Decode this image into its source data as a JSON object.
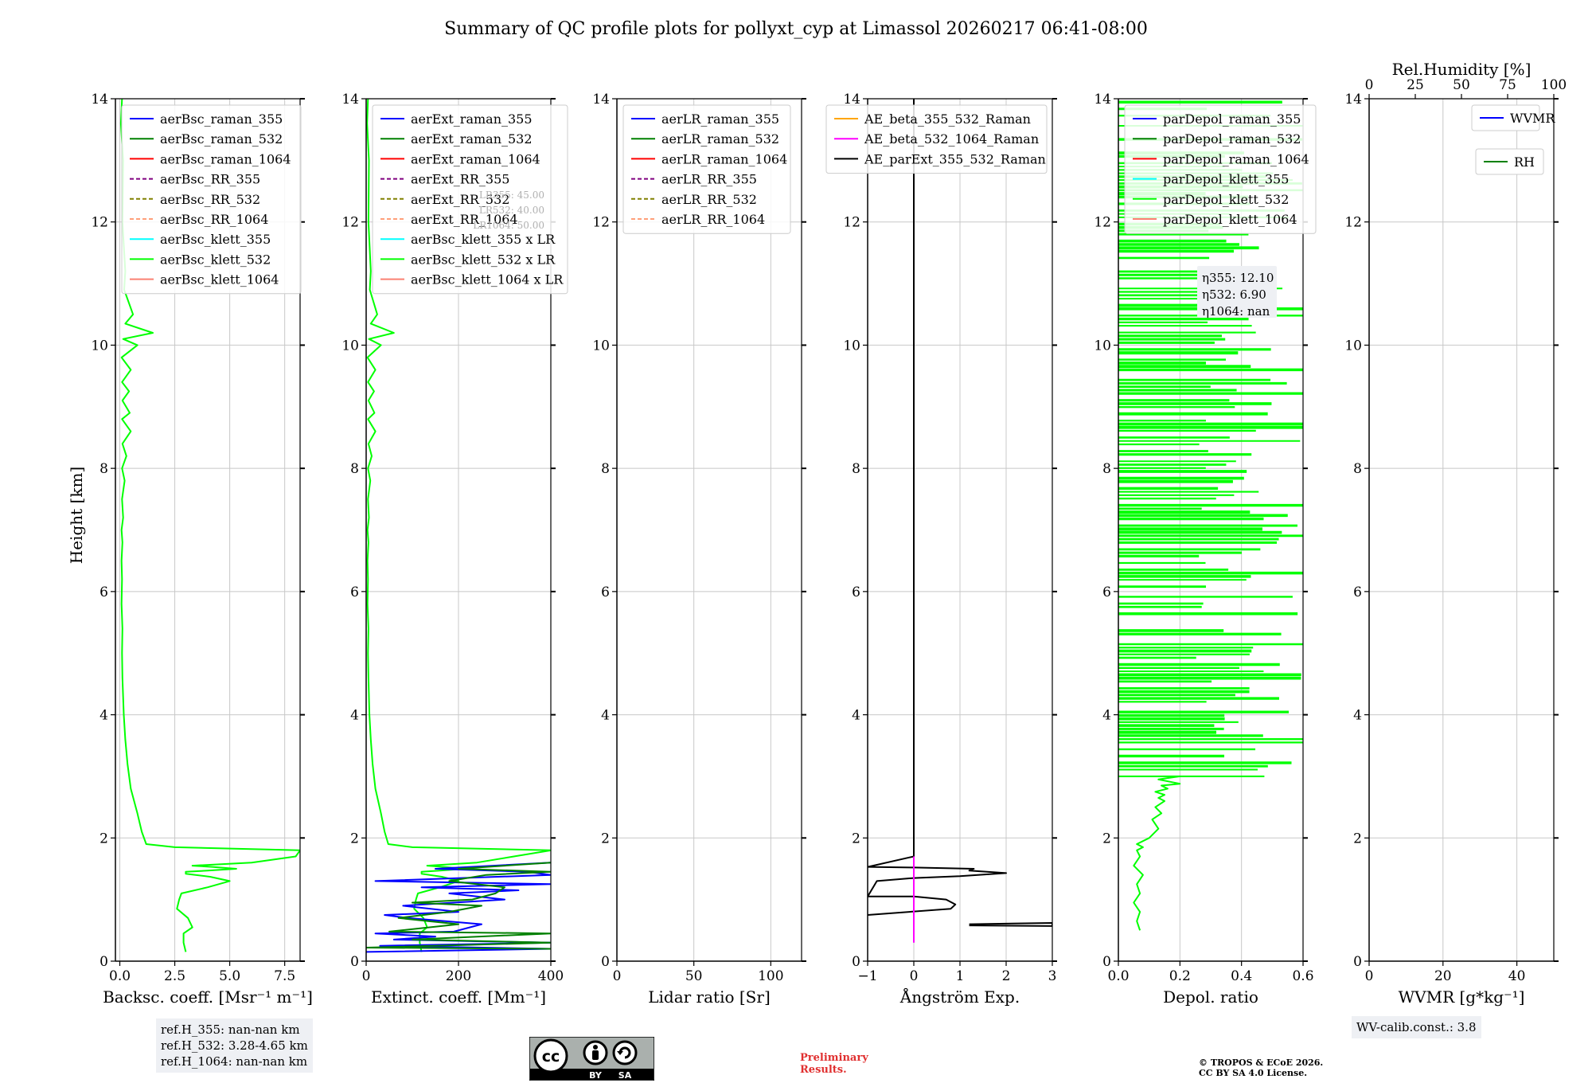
{
  "title": "Summary of QC profile plots for pollyxt_cyp at Limassol 20260217 06:41-08:00",
  "y_axis_label": "Height [km]",
  "chart_data": [
    {
      "type": "line",
      "panel": "backscatter",
      "xlabel": "Backsc. coeff. [Msr⁻¹ m⁻¹]",
      "xlim": [
        -0.2,
        8.2
      ],
      "xticks": [
        0.0,
        2.5,
        5.0,
        7.5
      ],
      "xtick_labels": [
        "0.0",
        "2.5",
        "5.0",
        "7.5"
      ],
      "ylim": [
        0,
        14
      ],
      "legend": [
        {
          "label": "aerBsc_raman_355",
          "color": "#0000ff",
          "dash": false
        },
        {
          "label": "aerBsc_raman_532",
          "color": "#008000",
          "dash": false
        },
        {
          "label": "aerBsc_raman_1064",
          "color": "#ff0000",
          "dash": false
        },
        {
          "label": "aerBsc_RR_355",
          "color": "#800080",
          "dash": true
        },
        {
          "label": "aerBsc_RR_532",
          "color": "#808000",
          "dash": true
        },
        {
          "label": "aerBsc_RR_1064",
          "color": "#ffa07a",
          "dash": true
        },
        {
          "label": "aerBsc_klett_355",
          "color": "#00ffff",
          "dash": false
        },
        {
          "label": "aerBsc_klett_532",
          "color": "#00ff00",
          "dash": false
        },
        {
          "label": "aerBsc_klett_1064",
          "color": "#fa8072",
          "dash": false
        }
      ],
      "series": [
        {
          "name": "aerBsc_klett_532",
          "color": "#00ff00",
          "x": [
            3.0,
            2.9,
            2.9,
            3.3,
            3.1,
            2.6,
            2.7,
            2.8,
            4.0,
            5.0,
            4.1,
            3.0,
            3.0,
            4.0,
            5.3,
            4.2,
            3.3,
            6.0,
            8.0,
            8.2,
            2.5,
            1.2,
            1.0,
            0.8,
            0.5,
            0.35,
            0.25,
            0.18,
            0.12,
            0.1,
            0.12,
            0.08,
            0.1,
            0.08,
            0.12,
            0.08,
            0.15,
            0.1,
            0.22,
            0.1,
            0.3,
            0.12,
            0.5,
            0.1,
            0.45,
            0.12,
            0.42,
            0.1,
            0.5,
            0.08,
            0.8,
            0.15,
            1.5,
            0.25,
            0.6,
            0.2,
            0.25,
            0.12,
            0.15,
            0.05,
            0.1
          ],
          "y": [
            0.15,
            0.3,
            0.45,
            0.55,
            0.7,
            0.85,
            1.0,
            1.1,
            1.2,
            1.3,
            1.37,
            1.42,
            1.45,
            1.47,
            1.5,
            1.53,
            1.55,
            1.6,
            1.7,
            1.8,
            1.85,
            1.9,
            2.1,
            2.4,
            2.8,
            3.2,
            3.6,
            4.0,
            4.6,
            5.0,
            5.4,
            5.8,
            6.2,
            6.5,
            6.8,
            7.0,
            7.2,
            7.5,
            7.8,
            8.0,
            8.2,
            8.4,
            8.6,
            8.8,
            8.9,
            9.1,
            9.25,
            9.4,
            9.6,
            9.8,
            10.0,
            10.1,
            10.2,
            10.35,
            10.5,
            10.9,
            11.2,
            12.0,
            13.0,
            13.6,
            14.0
          ]
        }
      ]
    },
    {
      "type": "line",
      "panel": "extinction",
      "xlabel": "Extinct. coeff. [Mm⁻¹]",
      "xlim": [
        0,
        400
      ],
      "xticks": [
        0,
        200,
        400
      ],
      "xtick_labels": [
        "0",
        "200",
        "400"
      ],
      "ylim": [
        0,
        14
      ],
      "lidar_ratio_labels": [
        "LR355: 45.00",
        "LR532: 40.00",
        "LR1064: 50.00"
      ],
      "legend": [
        {
          "label": "aerExt_raman_355",
          "color": "#0000ff",
          "dash": false
        },
        {
          "label": "aerExt_raman_532",
          "color": "#008000",
          "dash": false
        },
        {
          "label": "aerExt_raman_1064",
          "color": "#ff0000",
          "dash": false
        },
        {
          "label": "aerExt_RR_355",
          "color": "#800080",
          "dash": true
        },
        {
          "label": "aerExt_RR_532",
          "color": "#808000",
          "dash": true
        },
        {
          "label": "aerExt_RR_1064",
          "color": "#ffa07a",
          "dash": true
        },
        {
          "label": "aerBsc_klett_355 x LR",
          "color": "#00ffff",
          "dash": false
        },
        {
          "label": "aerBsc_klett_532 x LR",
          "color": "#00ff00",
          "dash": false
        },
        {
          "label": "aerBsc_klett_1064 x LR",
          "color": "#fa8072",
          "dash": false
        }
      ],
      "series": [
        {
          "name": "aerBsc_klett_532 x LR",
          "color": "#00ff00",
          "x": [
            120,
            116,
            116,
            132,
            124,
            104,
            108,
            112,
            160,
            200,
            164,
            120,
            120,
            160,
            212,
            168,
            132,
            240,
            320,
            400,
            100,
            48,
            40,
            32,
            20,
            14,
            10,
            7,
            5,
            4,
            5,
            3,
            4,
            3,
            5,
            3,
            6,
            4,
            9,
            4,
            12,
            5,
            20,
            4,
            18,
            5,
            17,
            4,
            20,
            3,
            32,
            6,
            60,
            10,
            24,
            8,
            10,
            5,
            6,
            2,
            4
          ],
          "y": [
            0.15,
            0.3,
            0.45,
            0.55,
            0.7,
            0.85,
            1.0,
            1.1,
            1.2,
            1.3,
            1.37,
            1.42,
            1.45,
            1.47,
            1.5,
            1.53,
            1.55,
            1.6,
            1.7,
            1.8,
            1.85,
            1.9,
            2.1,
            2.4,
            2.8,
            3.2,
            3.6,
            4.0,
            4.6,
            5.0,
            5.4,
            5.8,
            6.2,
            6.5,
            6.8,
            7.0,
            7.2,
            7.5,
            7.8,
            8.0,
            8.2,
            8.4,
            8.6,
            8.8,
            8.9,
            9.1,
            9.25,
            9.4,
            9.6,
            9.8,
            10.0,
            10.1,
            10.2,
            10.35,
            10.5,
            10.9,
            11.2,
            12.0,
            13.0,
            13.6,
            14.0
          ]
        },
        {
          "name": "aerExt_raman_355",
          "color": "#0000ff",
          "x": [
            0,
            400,
            30,
            400,
            60,
            150,
            20,
            190,
            250,
            90,
            40,
            200,
            80,
            300,
            180,
            330,
            120,
            400,
            20,
            400,
            350,
            150,
            400
          ],
          "y": [
            0.15,
            0.2,
            0.25,
            0.3,
            0.35,
            0.4,
            0.45,
            0.48,
            0.6,
            0.7,
            0.75,
            0.8,
            0.9,
            1.0,
            1.1,
            1.15,
            1.2,
            1.25,
            1.3,
            1.4,
            1.45,
            1.5,
            1.6
          ]
        },
        {
          "name": "aerExt_raman_532",
          "color": "#008000",
          "x": [
            400,
            0,
            400,
            100,
            400,
            50,
            200,
            70,
            180,
            250,
            100,
            230,
            280,
            300,
            180,
            260,
            400,
            200,
            400
          ],
          "y": [
            0.2,
            0.22,
            0.3,
            0.35,
            0.45,
            0.48,
            0.6,
            0.7,
            0.8,
            0.9,
            0.95,
            1.0,
            1.1,
            1.2,
            1.3,
            1.4,
            1.45,
            1.5,
            1.6
          ]
        }
      ]
    },
    {
      "type": "line",
      "panel": "lidar_ratio",
      "xlabel": "Lidar ratio [Sr]",
      "xlim": [
        0,
        120
      ],
      "xticks": [
        0,
        50,
        100
      ],
      "xtick_labels": [
        "0",
        "50",
        "100"
      ],
      "ylim": [
        0,
        14
      ],
      "legend": [
        {
          "label": "aerLR_raman_355",
          "color": "#0000ff",
          "dash": false
        },
        {
          "label": "aerLR_raman_532",
          "color": "#008000",
          "dash": false
        },
        {
          "label": "aerLR_raman_1064",
          "color": "#ff0000",
          "dash": false
        },
        {
          "label": "aerLR_RR_355",
          "color": "#800080",
          "dash": true
        },
        {
          "label": "aerLR_RR_532",
          "color": "#808000",
          "dash": true
        },
        {
          "label": "aerLR_RR_1064",
          "color": "#ffa07a",
          "dash": true
        }
      ],
      "series": []
    },
    {
      "type": "line",
      "panel": "angstrom",
      "xlabel": "Ångström Exp.",
      "xlim": [
        -1,
        3
      ],
      "xticks": [
        -1,
        0,
        1,
        2,
        3
      ],
      "xtick_labels": [
        "−1",
        "0",
        "1",
        "2",
        "3"
      ],
      "ylim": [
        0,
        14
      ],
      "legend": [
        {
          "label": "AE_beta_355_532_Raman",
          "color": "#ffa500",
          "dash": false
        },
        {
          "label": "AE_beta_532_1064_Raman",
          "color": "#ff00ff",
          "dash": false
        },
        {
          "label": "AE_parExt_355_532_Raman",
          "color": "#000000",
          "dash": false
        }
      ],
      "series": [
        {
          "name": "AE_parExt_355_532_Raman",
          "color": "#000000",
          "x": [
            -1.0,
            0.8,
            0.9,
            0.7,
            0.0,
            -1.0,
            -0.8,
            0.0,
            1.0,
            2.0,
            1.2,
            1.3,
            0.0,
            -1.0,
            0.0,
            0.0,
            0.0
          ],
          "y": [
            0.75,
            0.85,
            0.92,
            1.0,
            1.05,
            1.05,
            1.3,
            1.35,
            1.38,
            1.43,
            1.47,
            1.5,
            1.52,
            1.53,
            1.7,
            1.7,
            14.0
          ]
        },
        {
          "name": "AE_parExt_355_532_Raman (segment 2)",
          "color": "#000000",
          "x": [
            1.2,
            3.0,
            3.0,
            1.2
          ],
          "y": [
            0.6,
            0.62,
            0.57,
            0.58
          ]
        },
        {
          "name": "AE_beta_532_1064_Raman",
          "color": "#ff00ff",
          "x": [
            0.0,
            0.0
          ],
          "y": [
            0.3,
            1.7
          ]
        }
      ]
    },
    {
      "type": "line",
      "panel": "depolarization",
      "xlabel": "Depol. ratio",
      "xlim": [
        0,
        0.6
      ],
      "xticks": [
        0.0,
        0.2,
        0.4,
        0.6
      ],
      "xtick_labels": [
        "0.0",
        "0.2",
        "0.4",
        "0.6"
      ],
      "ylim": [
        0,
        14
      ],
      "eta_labels": [
        "η355: 12.10",
        "η532: 6.90",
        "η1064: nan"
      ],
      "legend": [
        {
          "label": "parDepol_raman_355",
          "color": "#0000ff",
          "dash": false
        },
        {
          "label": "parDepol_raman_532",
          "color": "#008000",
          "dash": false
        },
        {
          "label": "parDepol_raman_1064",
          "color": "#ff0000",
          "dash": false
        },
        {
          "label": "parDepol_klett_355",
          "color": "#00ffff",
          "dash": false
        },
        {
          "label": "parDepol_klett_532",
          "color": "#00ff00",
          "dash": false
        },
        {
          "label": "parDepol_klett_1064",
          "color": "#fa8072",
          "dash": false
        }
      ],
      "series": [
        {
          "name": "parDepol_klett_532 (near-field)",
          "color": "#00ff00",
          "x": [
            0.07,
            0.06,
            0.07,
            0.05,
            0.07,
            0.06,
            0.08,
            0.05,
            0.07,
            0.06,
            0.08,
            0.06,
            0.1,
            0.13,
            0.11,
            0.14,
            0.12,
            0.15,
            0.13,
            0.15,
            0.12,
            0.16,
            0.14,
            0.2,
            0.13,
            0.2
          ],
          "y": [
            0.5,
            0.65,
            0.8,
            0.95,
            1.1,
            1.25,
            1.4,
            1.55,
            1.7,
            1.8,
            1.85,
            1.9,
            2.0,
            2.15,
            2.3,
            2.4,
            2.5,
            2.6,
            2.65,
            2.7,
            2.75,
            2.8,
            2.85,
            2.88,
            2.95,
            3.0
          ]
        }
      ]
    },
    {
      "type": "line",
      "panel": "wvmr_rh",
      "xlabel": "WVMR [g*kg⁻¹]",
      "xlim": [
        0,
        50
      ],
      "xticks": [
        0,
        20,
        40
      ],
      "xtick_labels": [
        "0",
        "20",
        "40"
      ],
      "top_xlabel": "Rel.Humidity [%]",
      "top_xlim": [
        0,
        100
      ],
      "top_xticks": [
        0,
        25,
        50,
        75,
        100
      ],
      "top_xtick_labels": [
        "0",
        "25",
        "50",
        "75",
        "100"
      ],
      "ylim": [
        0,
        14
      ],
      "legend": [
        {
          "label": "WVMR",
          "color": "#0000ff",
          "dash": false
        },
        {
          "label": "RH",
          "color": "#008000",
          "dash": false
        }
      ],
      "series": []
    }
  ],
  "ref_heights": [
    "ref.H_355: nan-nan km",
    "ref.H_532: 3.28-4.65 km",
    "ref.H_1064: nan-nan km"
  ],
  "wv_calib": "WV-calib.const.: 3.8",
  "license_badge": {
    "cc": "cc",
    "by": "BY",
    "sa": "SA"
  },
  "preliminary": [
    "Preliminary",
    "Results."
  ],
  "copyright": [
    "© TROPOS & ECoE 2026.",
    "CC BY SA 4.0 License."
  ]
}
